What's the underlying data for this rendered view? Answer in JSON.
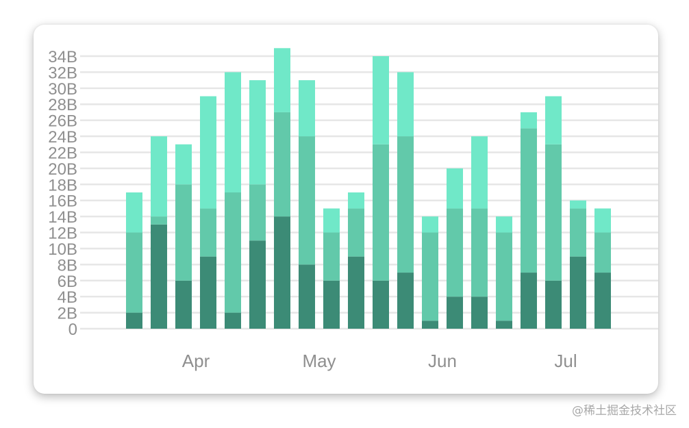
{
  "chart_data": {
    "type": "bar",
    "stacked": true,
    "x_ticks": [
      "Apr",
      "May",
      "Jun",
      "Jul"
    ],
    "x_tick_positions": [
      2.5,
      7.5,
      12.5,
      17.5
    ],
    "y_ticks": [
      "0",
      "2B",
      "4B",
      "6B",
      "8B",
      "10B",
      "12B",
      "14B",
      "16B",
      "18B",
      "20B",
      "22B",
      "24B",
      "26B",
      "28B",
      "30B",
      "32B",
      "34B"
    ],
    "ylim": [
      0,
      34
    ],
    "grid": true,
    "colors": [
      "#3c8b76",
      "#62c9aa",
      "#70e8c8"
    ],
    "series": [
      {
        "values": [
          2,
          13,
          6,
          9,
          2,
          11,
          14,
          8,
          6,
          9,
          6,
          7,
          1,
          4,
          4,
          1,
          7,
          6,
          9,
          7
        ]
      },
      {
        "values": [
          10,
          1,
          12,
          6,
          15,
          7,
          13,
          16,
          6,
          6,
          17,
          17,
          11,
          11,
          11,
          11,
          18,
          17,
          6,
          5
        ]
      },
      {
        "values": [
          5,
          10,
          5,
          14,
          15,
          13,
          8,
          7,
          3,
          2,
          11,
          8,
          2,
          5,
          9,
          2,
          2,
          6,
          1,
          3
        ]
      }
    ]
  },
  "watermark": "@稀土掘金技术社区"
}
